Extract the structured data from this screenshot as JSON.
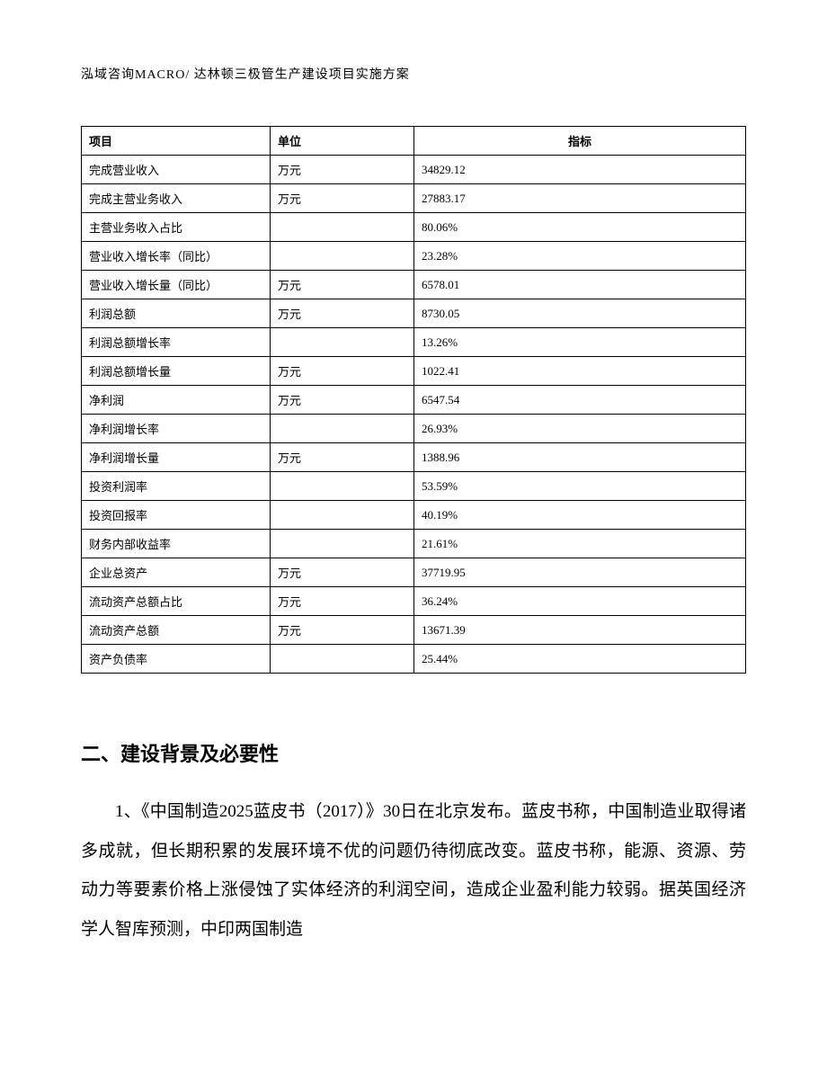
{
  "header": "泓域咨询MACRO/ 达林顿三极管生产建设项目实施方案",
  "table": {
    "columns": {
      "c0": "项目",
      "c1": "单位",
      "c2": "指标"
    },
    "rows": [
      {
        "item": "完成营业收入",
        "unit": "万元",
        "metric": "34829.12"
      },
      {
        "item": "完成主营业务收入",
        "unit": "万元",
        "metric": "27883.17"
      },
      {
        "item": "主营业务收入占比",
        "unit": "",
        "metric": "80.06%"
      },
      {
        "item": "营业收入增长率（同比）",
        "unit": "",
        "metric": "23.28%"
      },
      {
        "item": "营业收入增长量（同比）",
        "unit": "万元",
        "metric": "6578.01"
      },
      {
        "item": "利润总额",
        "unit": "万元",
        "metric": "8730.05"
      },
      {
        "item": "利润总额增长率",
        "unit": "",
        "metric": "13.26%"
      },
      {
        "item": "利润总额增长量",
        "unit": "万元",
        "metric": "1022.41"
      },
      {
        "item": "净利润",
        "unit": "万元",
        "metric": "6547.54"
      },
      {
        "item": "净利润增长率",
        "unit": "",
        "metric": "26.93%"
      },
      {
        "item": "净利润增长量",
        "unit": "万元",
        "metric": "1388.96"
      },
      {
        "item": "投资利润率",
        "unit": "",
        "metric": "53.59%"
      },
      {
        "item": "投资回报率",
        "unit": "",
        "metric": "40.19%"
      },
      {
        "item": "财务内部收益率",
        "unit": "",
        "metric": "21.61%"
      },
      {
        "item": "企业总资产",
        "unit": "万元",
        "metric": "37719.95"
      },
      {
        "item": "流动资产总额占比",
        "unit": "万元",
        "metric": "36.24%"
      },
      {
        "item": "流动资产总额",
        "unit": "万元",
        "metric": "13671.39"
      },
      {
        "item": "资产负债率",
        "unit": "",
        "metric": "25.44%"
      }
    ]
  },
  "section_title": "二、建设背景及必要性",
  "paragraph": "1、《中国制造2025蓝皮书（2017）》30日在北京发布。蓝皮书称，中国制造业取得诸多成就，但长期积累的发展环境不优的问题仍待彻底改变。蓝皮书称，能源、资源、劳动力等要素价格上涨侵蚀了实体经济的利润空间，造成企业盈利能力较弱。据英国经济学人智库预测，中印两国制造"
}
